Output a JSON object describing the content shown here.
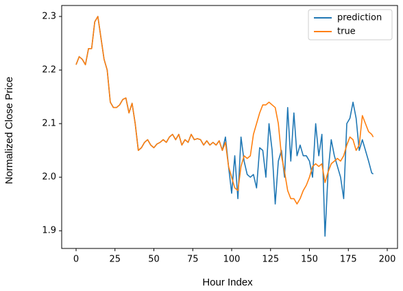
{
  "chart_data": {
    "type": "line",
    "xlabel": "Hour Index",
    "ylabel": "Normalized Close Price",
    "x": [
      0,
      2,
      4,
      6,
      8,
      10,
      12,
      14,
      16,
      18,
      20,
      22,
      24,
      26,
      28,
      30,
      32,
      34,
      36,
      38,
      40,
      42,
      44,
      46,
      48,
      50,
      52,
      54,
      56,
      58,
      60,
      62,
      64,
      66,
      68,
      70,
      72,
      74,
      76,
      78,
      80,
      82,
      84,
      86,
      88,
      90,
      92,
      94,
      96,
      98,
      100,
      102,
      104,
      106,
      108,
      110,
      112,
      114,
      116,
      118,
      120,
      122,
      124,
      126,
      128,
      130,
      132,
      134,
      136,
      138,
      140,
      142,
      144,
      146,
      148,
      150,
      152,
      154,
      156,
      158,
      160,
      162,
      164,
      166,
      168,
      170,
      172,
      174,
      176,
      178,
      180,
      182,
      184,
      186,
      188,
      190,
      191
    ],
    "series": [
      {
        "name": "prediction",
        "color": "#1f77b4",
        "values": [
          2.21,
          2.225,
          2.22,
          2.21,
          2.24,
          2.24,
          2.29,
          2.3,
          2.26,
          2.22,
          2.2,
          2.14,
          2.13,
          2.13,
          2.135,
          2.145,
          2.148,
          2.12,
          2.138,
          2.1,
          2.05,
          2.055,
          2.065,
          2.07,
          2.06,
          2.055,
          2.062,
          2.065,
          2.07,
          2.065,
          2.075,
          2.08,
          2.07,
          2.08,
          2.06,
          2.07,
          2.065,
          2.08,
          2.07,
          2.072,
          2.07,
          2.06,
          2.068,
          2.06,
          2.065,
          2.06,
          2.068,
          2.05,
          2.075,
          2.02,
          1.97,
          2.04,
          1.96,
          2.075,
          2.03,
          2.005,
          2.0,
          2.005,
          1.98,
          2.055,
          2.05,
          2.0,
          2.1,
          2.05,
          1.95,
          2.03,
          2.05,
          2.0,
          2.13,
          2.03,
          2.12,
          2.04,
          2.06,
          2.04,
          2.04,
          2.03,
          2.0,
          2.1,
          2.04,
          2.08,
          1.89,
          2.01,
          2.07,
          2.04,
          2.02,
          2.0,
          1.96,
          2.1,
          2.11,
          2.14,
          2.11,
          2.05,
          2.07,
          2.05,
          2.03,
          2.008,
          2.006
        ]
      },
      {
        "name": "true",
        "color": "#ff7f0e",
        "values": [
          2.21,
          2.225,
          2.22,
          2.21,
          2.24,
          2.24,
          2.29,
          2.3,
          2.26,
          2.22,
          2.2,
          2.14,
          2.13,
          2.13,
          2.135,
          2.145,
          2.148,
          2.12,
          2.138,
          2.1,
          2.05,
          2.055,
          2.065,
          2.07,
          2.06,
          2.055,
          2.062,
          2.065,
          2.07,
          2.065,
          2.075,
          2.08,
          2.07,
          2.08,
          2.06,
          2.07,
          2.065,
          2.08,
          2.07,
          2.072,
          2.07,
          2.06,
          2.068,
          2.06,
          2.065,
          2.06,
          2.068,
          2.05,
          2.065,
          2.02,
          2.0,
          1.98,
          1.975,
          2.02,
          2.04,
          2.035,
          2.04,
          2.08,
          2.1,
          2.12,
          2.135,
          2.135,
          2.14,
          2.135,
          2.13,
          2.1,
          2.04,
          2.01,
          1.975,
          1.96,
          1.96,
          1.95,
          1.96,
          1.975,
          1.985,
          2.0,
          2.02,
          2.025,
          2.02,
          2.025,
          1.99,
          2.01,
          2.025,
          2.03,
          2.035,
          2.03,
          2.04,
          2.06,
          2.075,
          2.07,
          2.05,
          2.06,
          2.115,
          2.1,
          2.085,
          2.08,
          2.075
        ]
      }
    ],
    "xlim": [
      -9.25,
      206.6
    ],
    "ylim": [
      1.867,
      2.3205
    ],
    "xticks": [
      0,
      25,
      50,
      75,
      100,
      125,
      150,
      175,
      200
    ],
    "yticks": [
      1.9,
      {
        "value": 2,
        "label": "2.0"
      },
      2.1,
      2.2,
      2.3
    ],
    "grid": false,
    "legend": "upper right"
  }
}
